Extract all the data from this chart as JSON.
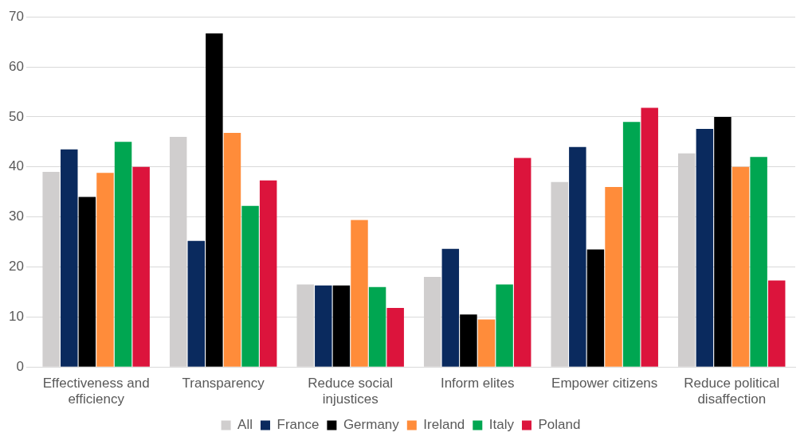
{
  "chart_data": {
    "type": "bar",
    "categories": [
      "Effectiveness and efficiency",
      "Transparency",
      "Reduce social injustices",
      "Inform elites",
      "Empower citizens",
      "Reduce political disaffection"
    ],
    "series": [
      {
        "name": "All",
        "color": "#d0cece",
        "values": [
          39,
          46,
          16.5,
          18,
          37,
          42.7
        ]
      },
      {
        "name": "France",
        "color": "#0a2a5e",
        "values": [
          43.5,
          25.2,
          16.3,
          23.6,
          44,
          47.6
        ]
      },
      {
        "name": "Germany",
        "color": "#000000",
        "values": [
          34,
          66.7,
          16.3,
          10.5,
          23.5,
          50
        ]
      },
      {
        "name": "Ireland",
        "color": "#ff8c3a",
        "values": [
          38.8,
          46.8,
          29.4,
          9.5,
          36,
          40
        ]
      },
      {
        "name": "Italy",
        "color": "#00a651",
        "values": [
          45,
          32.2,
          16,
          16.5,
          49,
          42
        ]
      },
      {
        "name": "Poland",
        "color": "#dc143c",
        "values": [
          40,
          37.3,
          11.8,
          41.8,
          51.8,
          17.3
        ]
      }
    ],
    "ylim": [
      0,
      70
    ],
    "yticks": [
      0,
      10,
      20,
      30,
      40,
      50,
      60,
      70
    ],
    "grid": "y",
    "legend": "bottom"
  }
}
